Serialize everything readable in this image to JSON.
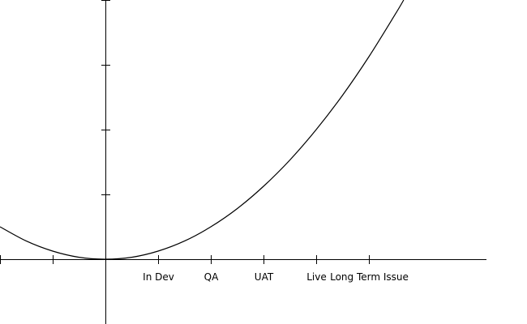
{
  "chart_data": {
    "type": "line",
    "x": [
      -2,
      -1.5,
      -1,
      -0.5,
      0,
      0.5,
      1,
      1.5,
      2,
      2.5,
      3,
      3.5,
      4,
      4.5,
      5,
      5.5,
      5.66
    ],
    "values": [
      0.5,
      0.28,
      0.125,
      0.03,
      0,
      0.03,
      0.125,
      0.28,
      0.5,
      0.78,
      1.125,
      1.53,
      2,
      2.53,
      3.125,
      3.78,
      4
    ],
    "color": "#000000",
    "xlim": [
      -2,
      7.2
    ],
    "ylim": [
      -1,
      4
    ],
    "xticks": [
      -2,
      -1,
      0,
      1,
      2,
      3,
      4,
      5
    ],
    "xtick_labels": [
      null,
      null,
      null,
      "In Dev",
      "QA",
      "UAT",
      "Live",
      "Long Term Issue"
    ],
    "yticks": [
      0,
      1,
      2,
      3,
      4
    ],
    "grid": false
  }
}
